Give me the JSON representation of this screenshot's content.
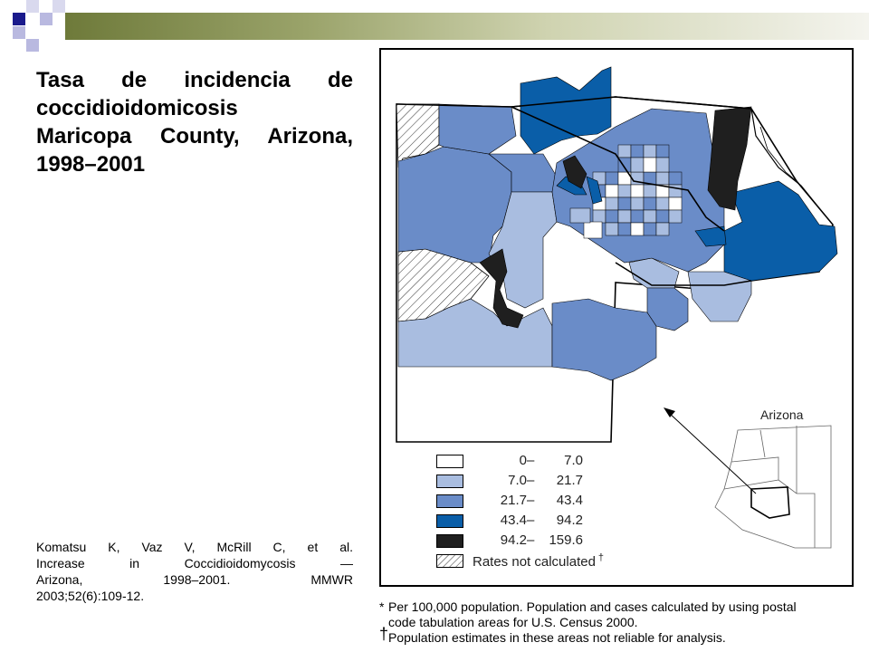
{
  "slide": {
    "title_lines": [
      "Tasa de incidencia de",
      "coccidioidomicosis",
      "Maricopa County, Arizona,",
      "1998–2001"
    ],
    "citation_lines": [
      "Komatsu K, Vaz V, McRill C, et al.",
      "Increase in Coccidioidomycosis —",
      "Arizona, 1998–2001. MMWR",
      "2003;52(6):109-12."
    ],
    "accent_colors": [
      "#1a1a8c",
      "#6e7a3a",
      "#b9b9e0"
    ]
  },
  "map": {
    "inset_label": "Arizona",
    "category_colors": [
      "#ffffff",
      "#a9bde0",
      "#6a8cc8",
      "#0a5ea8",
      "#1f1f1f"
    ],
    "legend": [
      {
        "lo": "0",
        "hi": "7.0",
        "color": "#ffffff"
      },
      {
        "lo": "7.0",
        "hi": "21.7",
        "color": "#a9bde0"
      },
      {
        "lo": "21.7",
        "hi": "43.4",
        "color": "#6a8cc8"
      },
      {
        "lo": "43.4",
        "hi": "94.2",
        "color": "#0a5ea8"
      },
      {
        "lo": "94.2",
        "hi": "159.6",
        "color": "#1f1f1f"
      }
    ],
    "not_calculated": {
      "label": "Rates not calculated",
      "mark": "†"
    },
    "footnotes": [
      {
        "mark": "*",
        "lines": [
          "Per 100,000 population. Population and cases calculated by using postal",
          "code tabulation areas for U.S. Census 2000."
        ]
      },
      {
        "mark": "†",
        "lines": [
          "Population estimates in these areas not reliable for analysis."
        ]
      }
    ]
  }
}
